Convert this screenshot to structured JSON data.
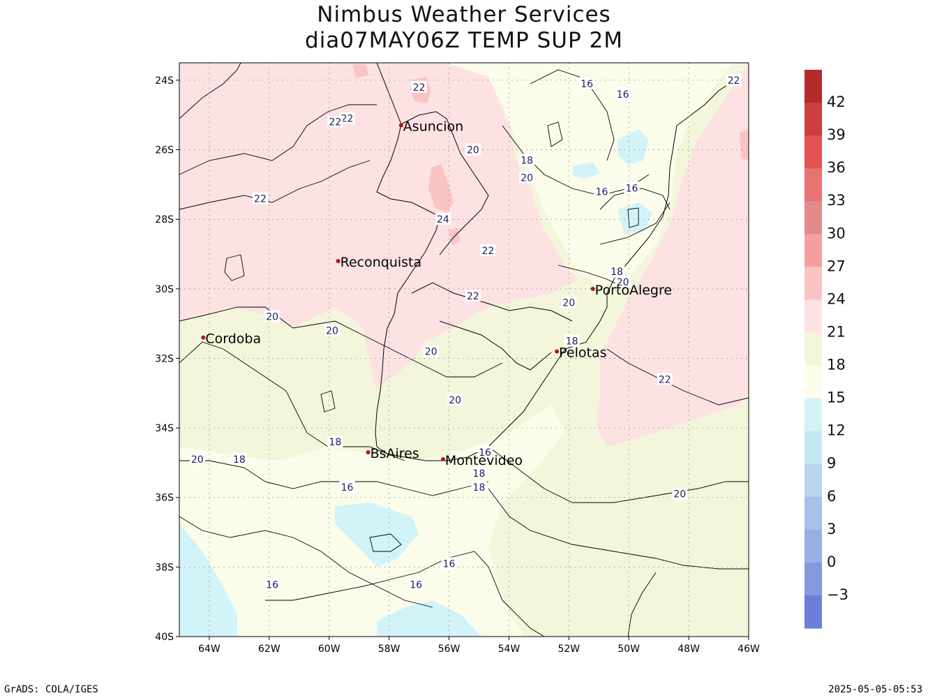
{
  "title_line1": "Nimbus Weather Services",
  "title_line2": "dia07MAY06Z TEMP SUP 2M",
  "footer_left": "GrADS: COLA/IGES",
  "footer_right": "2025-05-05-05:53",
  "map": {
    "lon_range": [
      -65,
      -46
    ],
    "lat_range": [
      -40,
      -23.5
    ],
    "lon_ticks": [
      {
        "value": -64,
        "label": "64W"
      },
      {
        "value": -62,
        "label": "62W"
      },
      {
        "value": -60,
        "label": "60W"
      },
      {
        "value": -58,
        "label": "58W"
      },
      {
        "value": -56,
        "label": "56W"
      },
      {
        "value": -54,
        "label": "54W"
      },
      {
        "value": -52,
        "label": "52W"
      },
      {
        "value": -50,
        "label": "50W"
      },
      {
        "value": -48,
        "label": "48W"
      },
      {
        "value": -46,
        "label": "46W"
      }
    ],
    "lat_ticks": [
      {
        "value": -24,
        "label": "24S"
      },
      {
        "value": -26,
        "label": "26S"
      },
      {
        "value": -28,
        "label": "28S"
      },
      {
        "value": -30,
        "label": "30S"
      },
      {
        "value": -32,
        "label": "32S"
      },
      {
        "value": -34,
        "label": "34S"
      },
      {
        "value": -36,
        "label": "36S"
      },
      {
        "value": -38,
        "label": "38S"
      },
      {
        "value": -40,
        "label": "40S"
      }
    ],
    "cities": [
      {
        "name": "Asuncion",
        "lon": -57.6,
        "lat": -25.3
      },
      {
        "name": "Reconquista",
        "lon": -59.7,
        "lat": -29.2
      },
      {
        "name": "PortoAlegre",
        "lon": -51.2,
        "lat": -30.0
      },
      {
        "name": "Cordoba",
        "lon": -64.2,
        "lat": -31.4
      },
      {
        "name": "Pelotas",
        "lon": -52.4,
        "lat": -31.8
      },
      {
        "name": "BsAires",
        "lon": -58.7,
        "lat": -34.7
      },
      {
        "name": "Montevideo",
        "lon": -56.2,
        "lat": -34.9
      }
    ],
    "contour_labels": [
      {
        "text": "22",
        "lon": -57.0,
        "lat": -24.2
      },
      {
        "text": "22",
        "lon": -59.4,
        "lat": -25.1
      },
      {
        "text": "22",
        "lon": -59.8,
        "lat": -25.2
      },
      {
        "text": "20",
        "lon": -55.2,
        "lat": -26.0
      },
      {
        "text": "18",
        "lon": -53.4,
        "lat": -26.3
      },
      {
        "text": "20",
        "lon": -53.4,
        "lat": -26.8
      },
      {
        "text": "16",
        "lon": -51.4,
        "lat": -24.1
      },
      {
        "text": "16",
        "lon": -50.2,
        "lat": -24.4
      },
      {
        "text": "22",
        "lon": -46.5,
        "lat": -24.0
      },
      {
        "text": "16",
        "lon": -50.9,
        "lat": -27.2
      },
      {
        "text": "16",
        "lon": -49.9,
        "lat": -27.1
      },
      {
        "text": "22",
        "lon": -62.3,
        "lat": -27.4
      },
      {
        "text": "24",
        "lon": -56.2,
        "lat": -28.0
      },
      {
        "text": "22",
        "lon": -54.7,
        "lat": -28.9
      },
      {
        "text": "18",
        "lon": -50.4,
        "lat": -29.5
      },
      {
        "text": "20",
        "lon": -50.2,
        "lat": -29.8
      },
      {
        "text": "22",
        "lon": -55.2,
        "lat": -30.2
      },
      {
        "text": "20",
        "lon": -52.0,
        "lat": -30.4
      },
      {
        "text": "20",
        "lon": -61.9,
        "lat": -30.8
      },
      {
        "text": "20",
        "lon": -59.9,
        "lat": -31.2
      },
      {
        "text": "18",
        "lon": -51.9,
        "lat": -31.5
      },
      {
        "text": "20",
        "lon": -56.6,
        "lat": -31.8
      },
      {
        "text": "22",
        "lon": -48.8,
        "lat": -32.6
      },
      {
        "text": "20",
        "lon": -55.8,
        "lat": -33.2
      },
      {
        "text": "18",
        "lon": -59.8,
        "lat": -34.4
      },
      {
        "text": "20",
        "lon": -64.4,
        "lat": -34.9
      },
      {
        "text": "18",
        "lon": -63.0,
        "lat": -34.9
      },
      {
        "text": "16",
        "lon": -54.8,
        "lat": -34.7
      },
      {
        "text": "18",
        "lon": -55.0,
        "lat": -35.3
      },
      {
        "text": "18",
        "lon": -55.0,
        "lat": -35.7
      },
      {
        "text": "16",
        "lon": -59.4,
        "lat": -35.7
      },
      {
        "text": "20",
        "lon": -48.3,
        "lat": -35.9
      },
      {
        "text": "16",
        "lon": -56.0,
        "lat": -37.9
      },
      {
        "text": "16",
        "lon": -61.9,
        "lat": -38.5
      },
      {
        "text": "16",
        "lon": -57.1,
        "lat": -38.5
      }
    ]
  },
  "colorbar": {
    "labels": [
      "42",
      "39",
      "36",
      "33",
      "30",
      "27",
      "24",
      "21",
      "18",
      "15",
      "12",
      "9",
      "6",
      "3",
      "0",
      "−3"
    ],
    "colors": {
      "band_45": "#b52a2a",
      "band_42": "#cd3e3e",
      "band_39": "#e35252",
      "band_36": "#ea7272",
      "band_33": "#e48a8a",
      "band_30": "#f5a0a0",
      "band_27": "#fbc4c4",
      "band_24": "#fde2e4",
      "band_21": "#f4f6dc",
      "band_18": "#fbfdea",
      "band_15": "#d2f4f8",
      "band_12": "#c4e8f0",
      "band_9": "#b6d6ee",
      "band_6": "#a6c2ea",
      "band_3": "#97b0e6",
      "band_0": "#8299df",
      "band_neg3": "#6a80d8"
    }
  }
}
